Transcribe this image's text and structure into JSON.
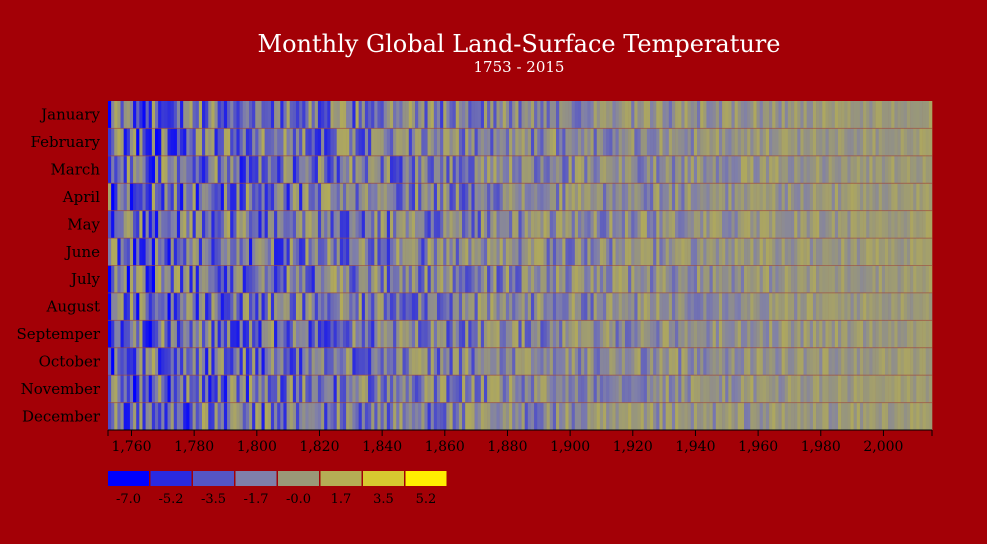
{
  "chart_data": {
    "type": "heatmap",
    "title": "Monthly Global Land-Surface Temperature",
    "subtitle": "1753 - 2015",
    "year_range": [
      1753,
      2015
    ],
    "months": [
      "January",
      "February",
      "March",
      "April",
      "May",
      "June",
      "July",
      "August",
      "Septemper",
      "October",
      "November",
      "December"
    ],
    "x_ticks": [
      "1,760",
      "1,780",
      "1,800",
      "1,820",
      "1,840",
      "1,860",
      "1,880",
      "1,900",
      "1,920",
      "1,940",
      "1,960",
      "1,980",
      "2,000"
    ],
    "x_tick_values": [
      1760,
      1780,
      1800,
      1820,
      1840,
      1860,
      1880,
      1900,
      1920,
      1940,
      1960,
      1980,
      2000
    ],
    "legend": {
      "labels": [
        "-7.0",
        "-5.2",
        "-3.5",
        "-1.7",
        "-0.0",
        "1.7",
        "3.5",
        "5.2"
      ],
      "colors": [
        "#0000ff",
        "#2a2ae0",
        "#5555c4",
        "#7f7faa",
        "#9a9878",
        "#b5ad55",
        "#d7c830",
        "#ffee00"
      ]
    },
    "colors": {
      "background": "#a30006",
      "gridline": "#a04a3a"
    }
  }
}
